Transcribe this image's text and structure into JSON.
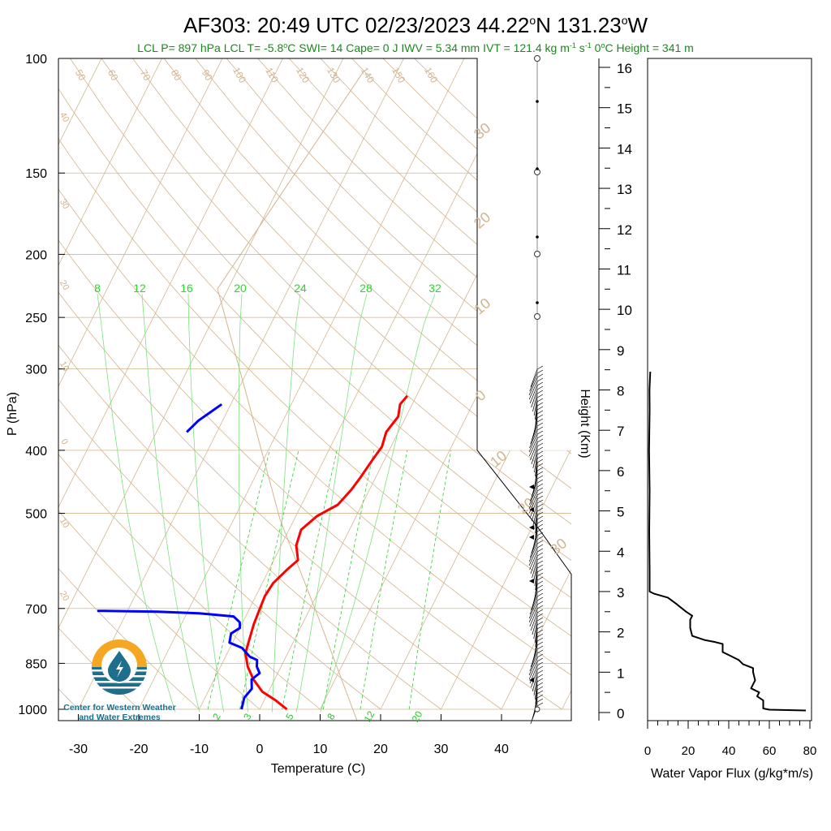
{
  "title": "AF303: 20:49 UTC 02/23/2023  44.22°N 131.23°W",
  "title_parts": {
    "main": "AF303: 20:49 UTC 02/23/2023  44.22",
    "deg1": "o",
    "mid": "N 131.23",
    "deg2": "o",
    "end": "W"
  },
  "stats": {
    "lcl_p": "LCL P= 897 hPa",
    "lcl_t_pre": "LCL T= -5.8",
    "lcl_t_post": "C",
    "swi": "SWI= 14",
    "cape": "Cape= 0 J",
    "iwv": "IWV = 5.34 mm",
    "ivt_pre": "IVT = 121.4 kg m",
    "ivt_exp1": "-1",
    "ivt_mid": " s",
    "ivt_exp2": "-1",
    "zero_pre": "0",
    "zero_post": "C Height = 341 m"
  },
  "colors": {
    "temperature": "#ff0000",
    "dewpoint": "#0000ff",
    "stats_text": "#1a8a1a",
    "mixing_ratio_labels": "#22dd22",
    "adiabat": "#d2b48c",
    "isotherm": "#d2b48c",
    "logo_blue": "#1e6f8c",
    "logo_orange": "#f5a623"
  },
  "skewt": {
    "ylabel": "P (hPa)",
    "xlabel": "Temperature (C)",
    "pressure_ticks": [
      "100",
      "150",
      "200",
      "250",
      "300",
      "400",
      "500",
      "700",
      "850",
      "1000"
    ],
    "temp_ticks": [
      "-30",
      "-20",
      "-10",
      "0",
      "10",
      "20",
      "30",
      "40"
    ],
    "mixing_ratio_top_labels": [
      "8",
      "12",
      "16",
      "20",
      "24",
      "28",
      "32"
    ],
    "mixing_ratio_bottom_labels": [
      "2",
      "3",
      "5",
      "8",
      "12",
      "20"
    ],
    "dry_adiabat_labels": [
      "50",
      "60",
      "70",
      "80",
      "90",
      "100",
      "110",
      "120",
      "130",
      "140",
      "150",
      "160"
    ],
    "theta_left_labels": [
      "40",
      "30",
      "20",
      "10",
      "0",
      "10",
      "20"
    ],
    "theta_right_labels": [
      "30",
      "20",
      "10",
      "0",
      "10",
      "20",
      "30"
    ]
  },
  "logo": {
    "line1": "Center for Western Weather",
    "line2": "and Water Extremes"
  },
  "flux": {
    "xlabel": "Water Vapor Flux (g/kg*m/s)",
    "ylabel": "Height (Km)",
    "x_ticks": [
      "0",
      "20",
      "40",
      "60",
      "80"
    ],
    "y_ticks": [
      "0",
      "1",
      "2",
      "3",
      "4",
      "5",
      "6",
      "7",
      "8",
      "9",
      "10",
      "11",
      "12",
      "13",
      "14",
      "15",
      "16"
    ]
  },
  "chart_data": [
    {
      "type": "line",
      "title": "AF303: 20:49 UTC 02/23/2023  44.22°N 131.23°W",
      "xlabel": "Temperature (C)",
      "ylabel": "P (hPa)",
      "y_scale": "log",
      "xlim": [
        -35,
        50
      ],
      "ylim": [
        1000,
        100
      ],
      "series": [
        {
          "values": [
            [
              4.5,
              1000
            ],
            [
              2,
              970
            ],
            [
              -1,
              940
            ],
            [
              -3.5,
              900
            ],
            [
              -5.5,
              860
            ],
            [
              -7,
              820
            ],
            [
              -7.5,
              780
            ],
            [
              -8,
              740
            ],
            [
              -8.3,
              700
            ],
            [
              -8.5,
              670
            ],
            [
              -8.2,
              640
            ],
            [
              -7,
              610
            ],
            [
              -6,
              590
            ],
            [
              -7.5,
              560
            ],
            [
              -8,
              530
            ],
            [
              -6.5,
              505
            ],
            [
              -4,
              485
            ],
            [
              -3,
              460
            ],
            [
              -2.5,
              440
            ],
            [
              -2,
              415
            ],
            [
              -1.5,
              395
            ],
            [
              -2,
              375
            ],
            [
              -1.3,
              355
            ],
            [
              -2,
              340
            ],
            [
              -1.5,
              330
            ]
          ]
        },
        {
          "values": [
            [
              -3,
              1000
            ],
            [
              -3.5,
              960
            ],
            [
              -3,
              930
            ],
            [
              -3.8,
              900
            ],
            [
              -3,
              880
            ],
            [
              -4,
              860
            ],
            [
              -4.5,
              840
            ],
            [
              -6,
              830
            ],
            [
              -8,
              805
            ],
            [
              -10.5,
              790
            ],
            [
              -11,
              765
            ],
            [
              -10,
              750
            ],
            [
              -10.5,
              735
            ],
            [
              -12,
              720
            ],
            [
              -18,
              712
            ],
            [
              -25,
              708
            ],
            [
              -35,
              706
            ]
          ]
        },
        {
          "values": [
            [
              -35,
              375
            ],
            [
              -34,
              360
            ],
            [
              -31.5,
              340
            ]
          ]
        }
      ]
    },
    {
      "type": "line",
      "xlabel": "Water Vapor Flux (g/kg*m/s)",
      "ylabel": "Height (Km)",
      "xlim": [
        0,
        80
      ],
      "ylim": [
        0,
        16.5
      ],
      "values": [
        [
          78,
          0.05
        ],
        [
          60,
          0.07
        ],
        [
          57,
          0.1
        ],
        [
          57,
          0.3
        ],
        [
          54,
          0.4
        ],
        [
          55,
          0.5
        ],
        [
          51,
          0.6
        ],
        [
          53,
          0.8
        ],
        [
          52,
          1.0
        ],
        [
          52,
          1.1
        ],
        [
          47,
          1.2
        ],
        [
          45,
          1.3
        ],
        [
          41,
          1.4
        ],
        [
          37,
          1.5
        ],
        [
          37,
          1.7
        ],
        [
          33,
          1.75
        ],
        [
          28,
          1.8
        ],
        [
          22,
          1.9
        ],
        [
          21,
          2.1
        ],
        [
          21,
          2.3
        ],
        [
          22,
          2.4
        ],
        [
          19,
          2.5
        ],
        [
          14,
          2.7
        ],
        [
          10,
          2.85
        ],
        [
          3,
          2.95
        ],
        [
          1,
          3.0
        ],
        [
          1,
          3.5
        ],
        [
          0.8,
          4.5
        ],
        [
          1,
          5.5
        ],
        [
          0.7,
          6.5
        ],
        [
          1,
          7.5
        ],
        [
          0.9,
          8.0
        ],
        [
          1.3,
          8.45
        ]
      ]
    }
  ]
}
